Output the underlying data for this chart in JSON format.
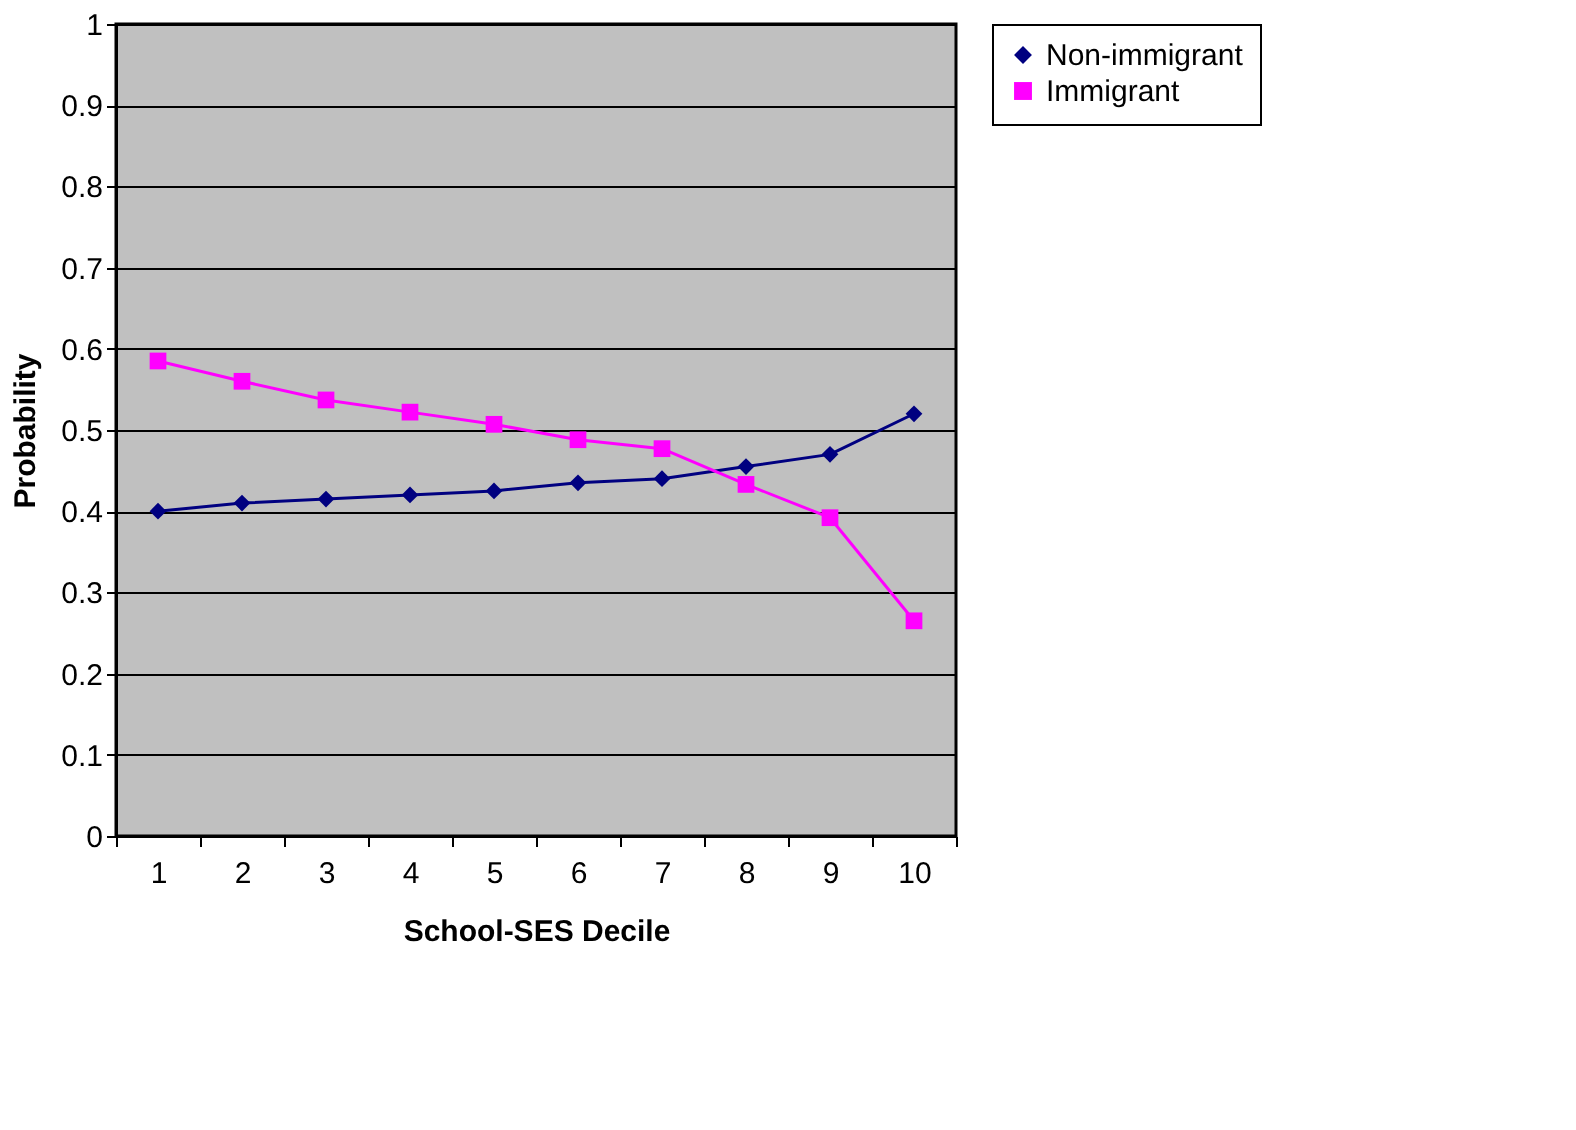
{
  "chart_data": {
    "type": "line",
    "xlabel": "School-SES Decile",
    "ylabel": "Probability",
    "categories": [
      "1",
      "2",
      "3",
      "4",
      "5",
      "6",
      "7",
      "8",
      "9",
      "10"
    ],
    "series": [
      {
        "name": "Non-immigrant",
        "color": "#000080",
        "marker": "diamond",
        "values": [
          0.4,
          0.41,
          0.415,
          0.42,
          0.425,
          0.435,
          0.44,
          0.455,
          0.47,
          0.52
        ]
      },
      {
        "name": "Immigrant",
        "color": "#ff00ff",
        "marker": "square",
        "values": [
          0.585,
          0.56,
          0.537,
          0.522,
          0.507,
          0.488,
          0.477,
          0.433,
          0.392,
          0.265
        ]
      }
    ],
    "ylim": [
      0,
      1
    ],
    "yticks": [
      0,
      0.1,
      0.2,
      0.3,
      0.4,
      0.5,
      0.6,
      0.7,
      0.8,
      0.9,
      1
    ],
    "grid": "y",
    "legend": "right",
    "line_style": "solid"
  }
}
